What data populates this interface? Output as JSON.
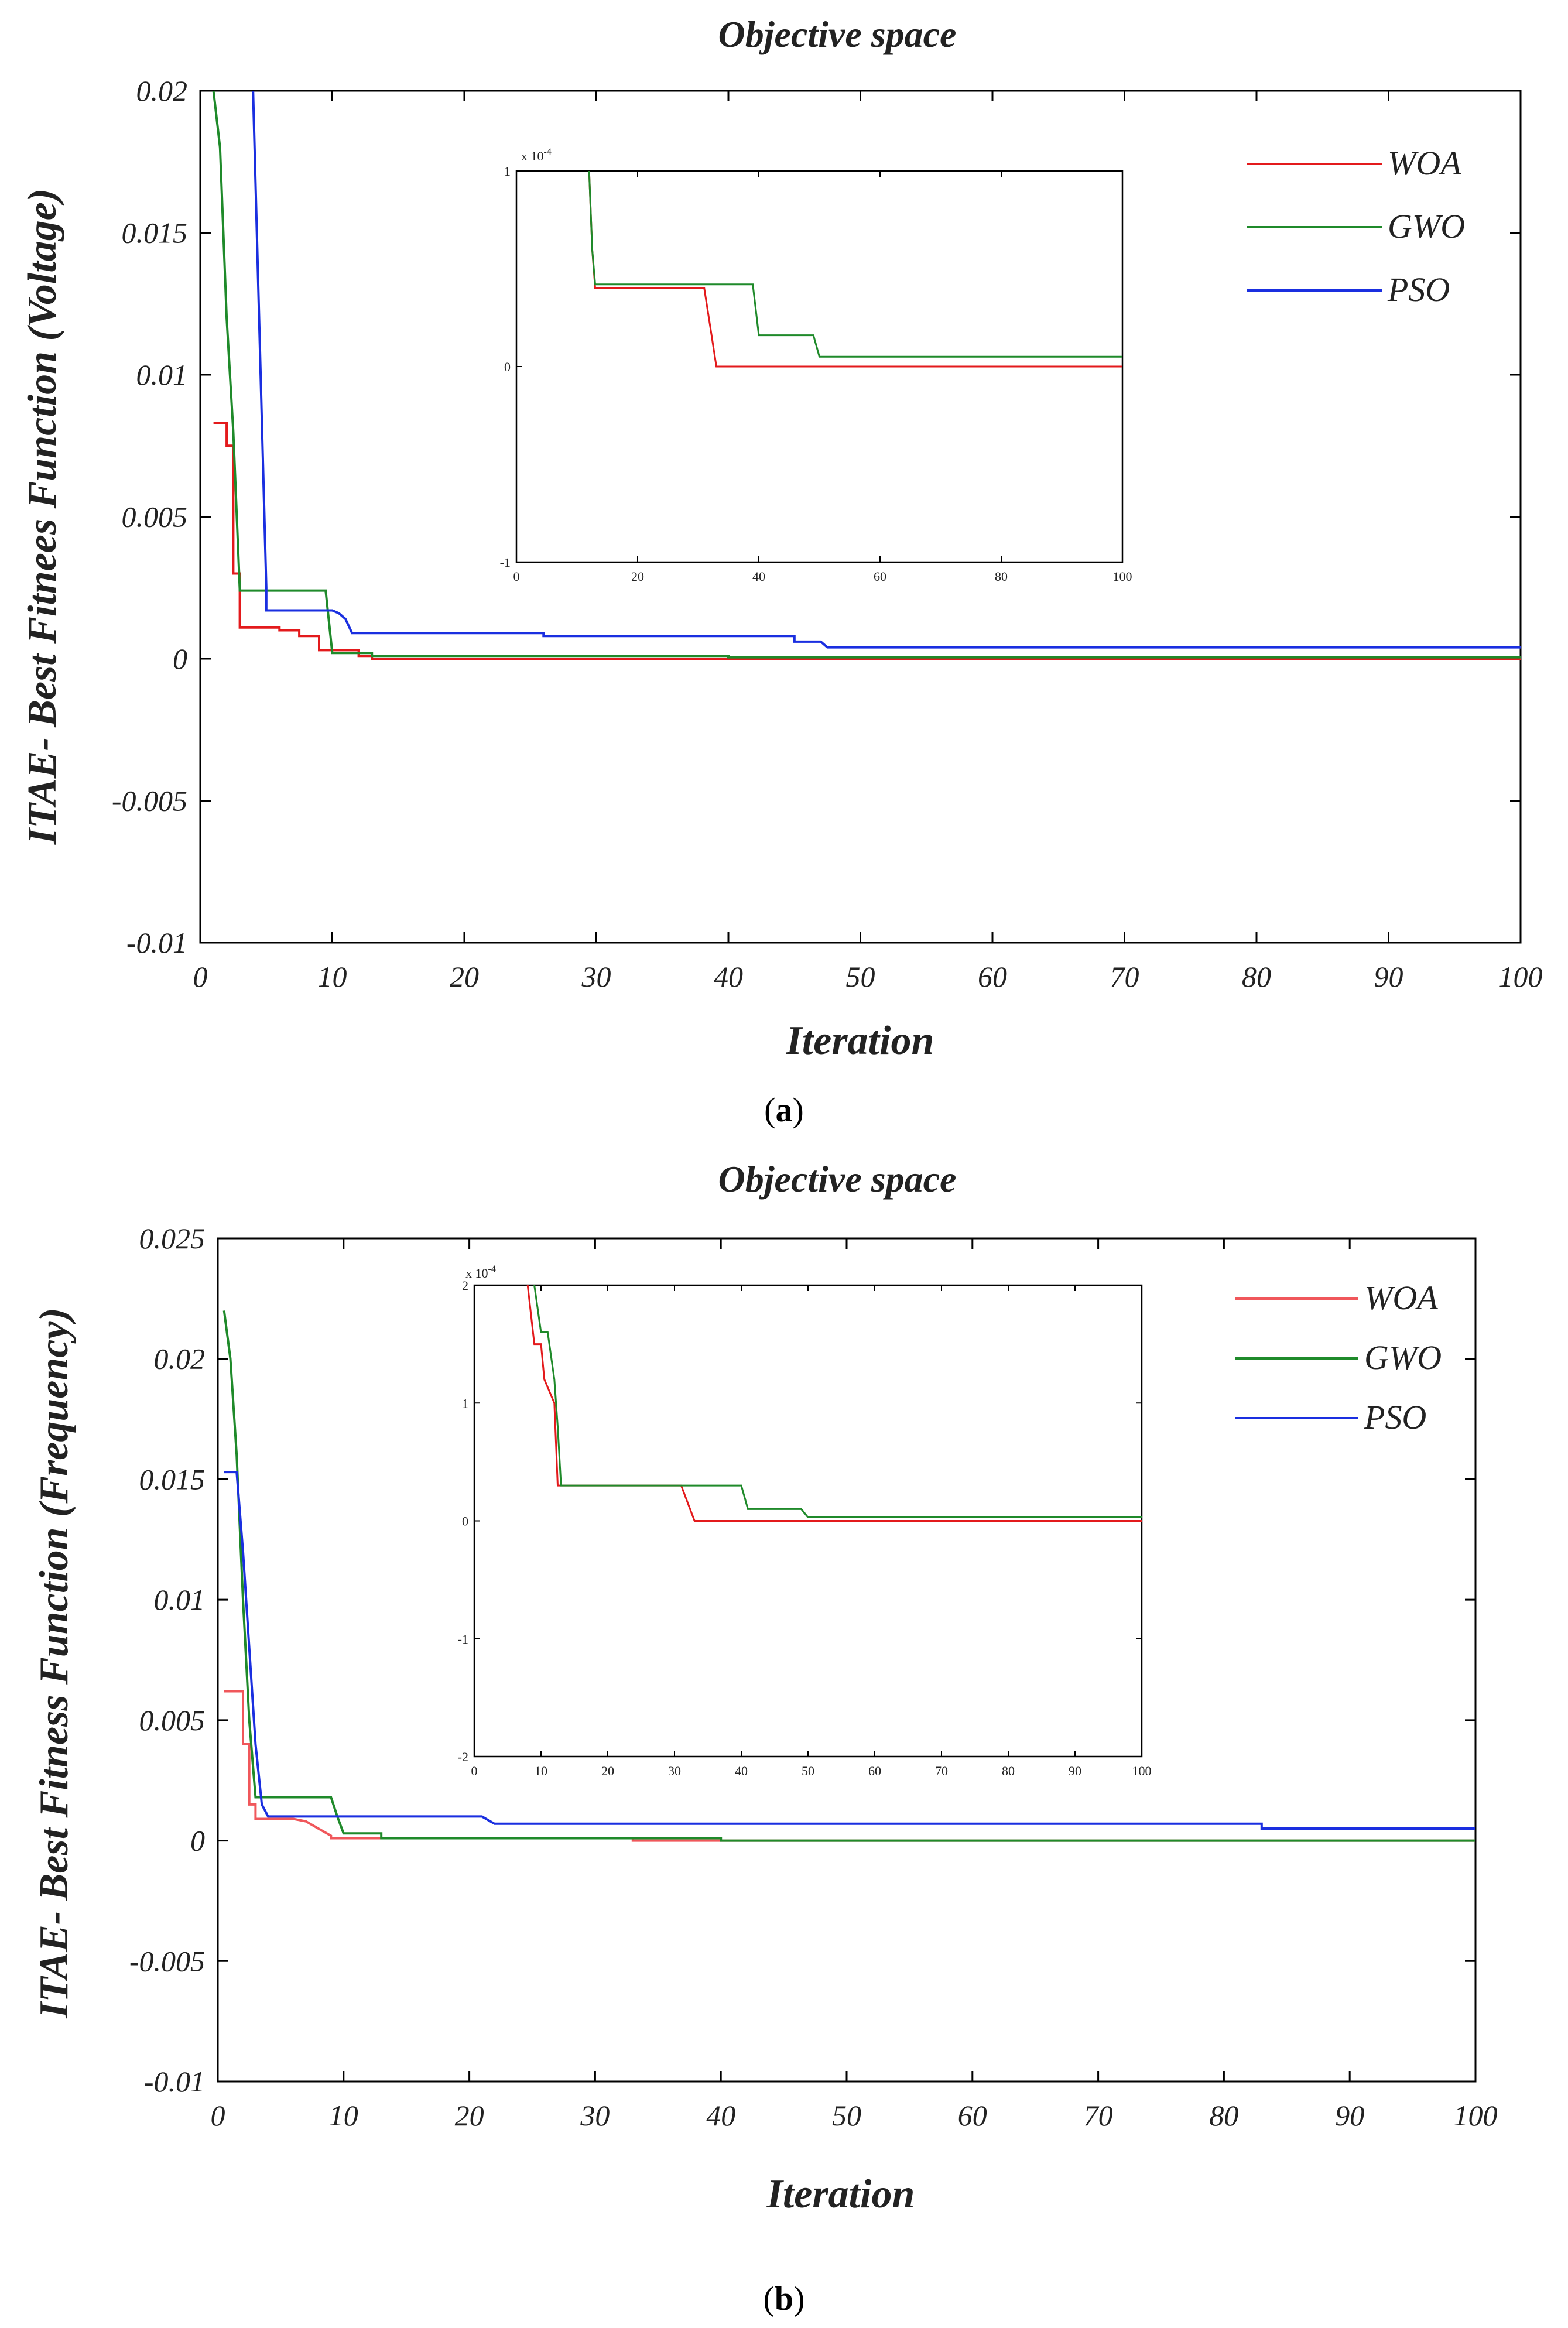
{
  "chart_data": [
    {
      "type": "line",
      "panel_label": "a",
      "title": "Objective space",
      "xlabel": "Iteration",
      "ylabel": "ITAE- Best Fitnees Function (Voltage)",
      "xlim": [
        0,
        100
      ],
      "ylim": [
        -0.01,
        0.02
      ],
      "xticks": [
        "0",
        "10",
        "20",
        "30",
        "40",
        "50",
        "60",
        "70",
        "80",
        "90",
        "100"
      ],
      "yticks": [
        "0.02",
        "0.015",
        "0.01",
        "0.005",
        "0",
        "-0.005",
        "-0.01"
      ],
      "legend_position": "top-right",
      "series": [
        {
          "name": "WOA",
          "color": "#e31a1c",
          "points": [
            [
              1,
              0.0083
            ],
            [
              2,
              0.0083
            ],
            [
              2,
              0.0075
            ],
            [
              2.5,
              0.0075
            ],
            [
              2.5,
              0.003
            ],
            [
              3,
              0.003
            ],
            [
              3,
              0.0011
            ],
            [
              6,
              0.0011
            ],
            [
              6,
              0.001
            ],
            [
              7.5,
              0.001
            ],
            [
              7.5,
              0.0008
            ],
            [
              9,
              0.0008
            ],
            [
              9,
              0.0003
            ],
            [
              12,
              0.0003
            ],
            [
              12,
              0.0001
            ],
            [
              13,
              0.0001
            ],
            [
              13,
              0
            ],
            [
              100,
              0
            ]
          ]
        },
        {
          "name": "GWO",
          "color": "#1f8a2a",
          "points": [
            [
              1,
              0.02
            ],
            [
              1.5,
              0.018
            ],
            [
              2,
              0.012
            ],
            [
              2.5,
              0.008
            ],
            [
              3,
              0.0024
            ],
            [
              9.5,
              0.0024
            ],
            [
              10,
              0.0002
            ],
            [
              13,
              0.0002
            ],
            [
              13,
              0.0001
            ],
            [
              40,
              0.0001
            ],
            [
              40,
              5e-05
            ],
            [
              100,
              5e-05
            ]
          ]
        },
        {
          "name": "PSO",
          "color": "#1a2fe0",
          "points": [
            [
              4,
              0.02
            ],
            [
              5,
              0.0025
            ],
            [
              5,
              0.0017
            ],
            [
              10,
              0.0017
            ],
            [
              10.5,
              0.0016
            ],
            [
              11,
              0.0014
            ],
            [
              11.5,
              0.0009
            ],
            [
              26,
              0.0009
            ],
            [
              26,
              0.0008
            ],
            [
              45,
              0.0008
            ],
            [
              45,
              0.0006
            ],
            [
              47,
              0.0006
            ],
            [
              47.5,
              0.0004
            ],
            [
              100,
              0.0004
            ]
          ]
        }
      ],
      "inset": {
        "xlim": [
          0,
          100
        ],
        "ylim": [
          -1,
          1
        ],
        "exponent_label": "x 10",
        "exponent_power": "-4",
        "xticks": [
          "0",
          "20",
          "40",
          "60",
          "80",
          "100"
        ],
        "yticks": [
          "1",
          "0",
          "-1"
        ],
        "series": [
          {
            "name": "WOA",
            "color": "#e31a1c",
            "points": [
              [
                12,
                1
              ],
              [
                12.5,
                0.6
              ],
              [
                13,
                0.4
              ],
              [
                31,
                0.4
              ],
              [
                32,
                0.2
              ],
              [
                33,
                0
              ],
              [
                100,
                0
              ]
            ]
          },
          {
            "name": "GWO",
            "color": "#1f8a2a",
            "points": [
              [
                12,
                1
              ],
              [
                12.5,
                0.6
              ],
              [
                13,
                0.42
              ],
              [
                39,
                0.42
              ],
              [
                40,
                0.16
              ],
              [
                49,
                0.16
              ],
              [
                50,
                0.05
              ],
              [
                100,
                0.05
              ]
            ]
          }
        ]
      }
    },
    {
      "type": "line",
      "panel_label": "b",
      "title": "Objective space",
      "xlabel": "Iteration",
      "ylabel": "ITAE- Best Fitness Function (Frequency)",
      "xlim": [
        0,
        100
      ],
      "ylim": [
        -0.01,
        0.025
      ],
      "xticks": [
        "0",
        "10",
        "20",
        "30",
        "40",
        "50",
        "60",
        "70",
        "80",
        "90",
        "100"
      ],
      "yticks": [
        "0.025",
        "0.02",
        "0.015",
        "0.01",
        "0.005",
        "0",
        "-0.005",
        "-0.01"
      ],
      "legend_position": "top-right",
      "series": [
        {
          "name": "WOA",
          "color": "#f0575b",
          "points": [
            [
              0.5,
              0.0062
            ],
            [
              2,
              0.0062
            ],
            [
              2,
              0.004
            ],
            [
              2.5,
              0.004
            ],
            [
              2.5,
              0.0015
            ],
            [
              3,
              0.0015
            ],
            [
              3,
              0.0009
            ],
            [
              6,
              0.0009
            ],
            [
              7,
              0.0008
            ],
            [
              8,
              0.0005
            ],
            [
              9,
              0.0002
            ],
            [
              9,
              0.0001
            ],
            [
              33,
              0.0001
            ],
            [
              33,
              0
            ],
            [
              100,
              0
            ]
          ]
        },
        {
          "name": "GWO",
          "color": "#1f8a2a",
          "points": [
            [
              0.5,
              0.022
            ],
            [
              1,
              0.02
            ],
            [
              1.5,
              0.016
            ],
            [
              2,
              0.01
            ],
            [
              2.5,
              0.005
            ],
            [
              3,
              0.0018
            ],
            [
              9,
              0.0018
            ],
            [
              9.5,
              0.001
            ],
            [
              10,
              0.0003
            ],
            [
              13,
              0.0003
            ],
            [
              13,
              0.0001
            ],
            [
              40,
              0.0001
            ],
            [
              40,
              0
            ],
            [
              100,
              0
            ]
          ]
        },
        {
          "name": "PSO",
          "color": "#1a2fe0",
          "points": [
            [
              0.5,
              0.0153
            ],
            [
              1.5,
              0.0153
            ],
            [
              2,
              0.012
            ],
            [
              2.5,
              0.008
            ],
            [
              3,
              0.004
            ],
            [
              3.5,
              0.0015
            ],
            [
              4,
              0.001
            ],
            [
              21,
              0.001
            ],
            [
              22,
              0.0007
            ],
            [
              83,
              0.0007
            ],
            [
              83,
              0.0005
            ],
            [
              100,
              0.0005
            ]
          ]
        }
      ],
      "inset": {
        "xlim": [
          0,
          100
        ],
        "ylim": [
          -2,
          2
        ],
        "exponent_label": "x 10",
        "exponent_power": "-4",
        "xticks": [
          "0",
          "10",
          "20",
          "30",
          "40",
          "50",
          "60",
          "70",
          "80",
          "90",
          "100"
        ],
        "yticks": [
          "2",
          "1",
          "0",
          "-1",
          "-2"
        ],
        "series": [
          {
            "name": "WOA",
            "color": "#e31a1c",
            "points": [
              [
                8,
                2
              ],
              [
                9,
                1.5
              ],
              [
                10,
                1.5
              ],
              [
                10.5,
                1.2
              ],
              [
                12,
                1
              ],
              [
                12.5,
                0.3
              ],
              [
                31,
                0.3
              ],
              [
                32,
                0.15
              ],
              [
                33,
                0
              ],
              [
                100,
                0
              ]
            ]
          },
          {
            "name": "GWO",
            "color": "#1f8a2a",
            "points": [
              [
                9,
                2
              ],
              [
                10,
                1.6
              ],
              [
                11,
                1.6
              ],
              [
                12,
                1.2
              ],
              [
                12.5,
                0.8
              ],
              [
                13,
                0.3
              ],
              [
                40,
                0.3
              ],
              [
                41,
                0.1
              ],
              [
                49,
                0.1
              ],
              [
                50,
                0.03
              ],
              [
                100,
                0.03
              ]
            ]
          }
        ]
      }
    }
  ]
}
